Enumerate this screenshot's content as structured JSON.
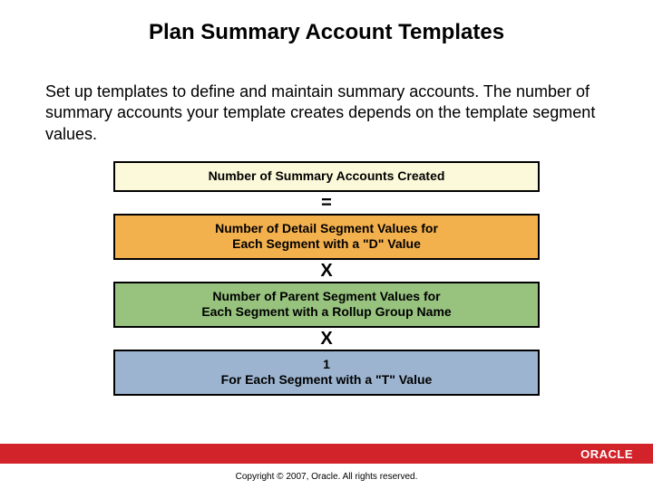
{
  "title": "Plan Summary Account Templates",
  "body_text": "Set up templates to define and maintain summary accounts. The number of summary accounts your template creates depends on the template segment values.",
  "diagram": {
    "box1": {
      "text": "Number of Summary Accounts Created",
      "bg": "#fcf9da"
    },
    "op1": "=",
    "box2": {
      "text": "Number of Detail Segment Values for\nEach Segment with a \"D\" Value",
      "bg": "#f3b14e"
    },
    "op2": "X",
    "box3": {
      "text": "Number of Parent Segment Values for\nEach Segment with a Rollup Group Name",
      "bg": "#97c37f"
    },
    "op3": "X",
    "box4": {
      "text": "1\nFor Each Segment with a \"T\" Value",
      "bg": "#9cb4d0"
    }
  },
  "footer": {
    "bar_color": "#d2232a",
    "brand": "ORACLE",
    "copyright": "Copyright © 2007, Oracle. All rights reserved."
  }
}
